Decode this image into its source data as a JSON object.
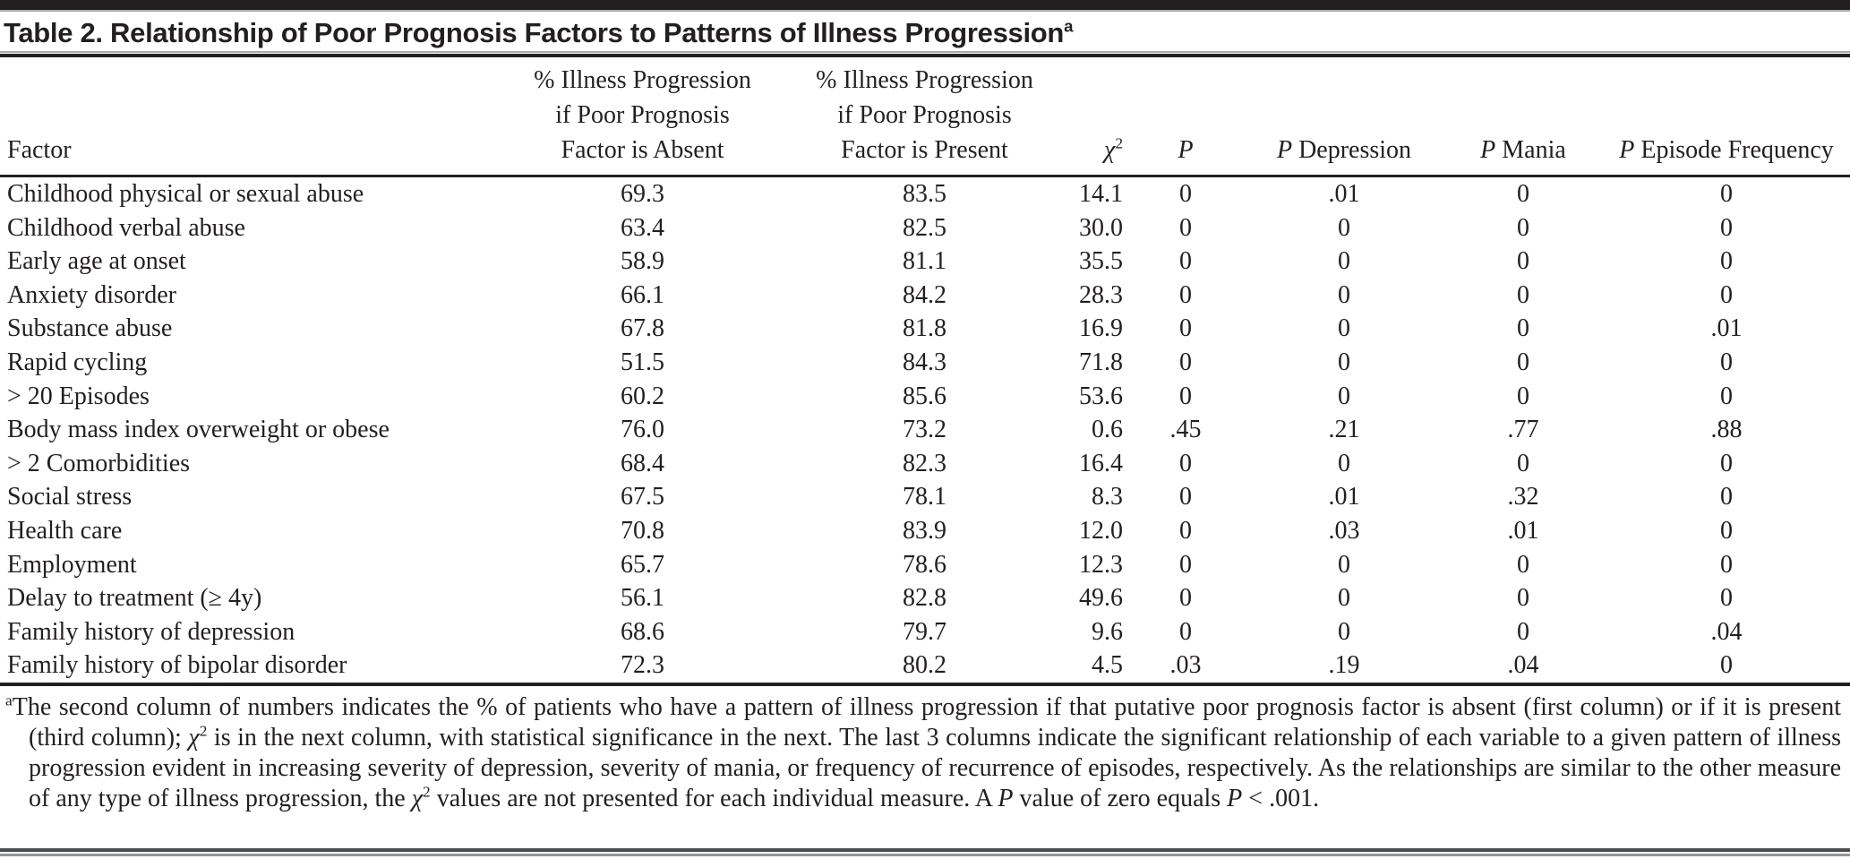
{
  "title": {
    "label": "Table 2. Relationship of Poor Prognosis Factors to Patterns of Illness Progression",
    "footnote_marker": "a"
  },
  "table": {
    "columns": [
      {
        "key": "factor",
        "align": "left",
        "parts": [
          {
            "text": "Factor"
          }
        ]
      },
      {
        "key": "pct_absent",
        "align": "center",
        "parts": [
          {
            "text": "% Illness Progression\nif Poor Prognosis\nFactor is Absent"
          }
        ]
      },
      {
        "key": "pct_present",
        "align": "center",
        "parts": [
          {
            "text": "% Illness Progression\nif Poor Prognosis\nFactor is Present"
          }
        ]
      },
      {
        "key": "chi_square",
        "align": "right",
        "parts": [
          {
            "text": "χ",
            "italic": true
          },
          {
            "text": "2",
            "sup": true
          }
        ]
      },
      {
        "key": "p",
        "align": "center",
        "parts": [
          {
            "text": "P",
            "italic": true
          }
        ]
      },
      {
        "key": "p_depression",
        "align": "center",
        "parts": [
          {
            "text": "P",
            "italic": true
          },
          {
            "text": " Depression"
          }
        ]
      },
      {
        "key": "p_mania",
        "align": "center",
        "parts": [
          {
            "text": "P",
            "italic": true
          },
          {
            "text": " Mania"
          }
        ]
      },
      {
        "key": "p_episode_frequency",
        "align": "center",
        "parts": [
          {
            "text": "P",
            "italic": true
          },
          {
            "text": " Episode Frequency"
          }
        ]
      }
    ],
    "rows": [
      [
        "Childhood physical or sexual abuse",
        "69.3",
        "83.5",
        "14.1",
        "0",
        ".01",
        "0",
        "0"
      ],
      [
        "Childhood verbal abuse",
        "63.4",
        "82.5",
        "30.0",
        "0",
        "0",
        "0",
        "0"
      ],
      [
        "Early age at onset",
        "58.9",
        "81.1",
        "35.5",
        "0",
        "0",
        "0",
        "0"
      ],
      [
        "Anxiety disorder",
        "66.1",
        "84.2",
        "28.3",
        "0",
        "0",
        "0",
        "0"
      ],
      [
        "Substance abuse",
        "67.8",
        "81.8",
        "16.9",
        "0",
        "0",
        "0",
        ".01"
      ],
      [
        "Rapid cycling",
        "51.5",
        "84.3",
        "71.8",
        "0",
        "0",
        "0",
        "0"
      ],
      [
        "> 20 Episodes",
        "60.2",
        "85.6",
        "53.6",
        "0",
        "0",
        "0",
        "0"
      ],
      [
        "Body mass index overweight or obese",
        "76.0",
        "73.2",
        "0.6",
        ".45",
        ".21",
        ".77",
        ".88"
      ],
      [
        "> 2 Comorbidities",
        "68.4",
        "82.3",
        "16.4",
        "0",
        "0",
        "0",
        "0"
      ],
      [
        "Social stress",
        "67.5",
        "78.1",
        "8.3",
        "0",
        ".01",
        ".32",
        "0"
      ],
      [
        "Health care",
        "70.8",
        "83.9",
        "12.0",
        "0",
        ".03",
        ".01",
        "0"
      ],
      [
        "Employment",
        "65.7",
        "78.6",
        "12.3",
        "0",
        "0",
        "0",
        "0"
      ],
      [
        "Delay to treatment (≥ 4y)",
        "56.1",
        "82.8",
        "49.6",
        "0",
        "0",
        "0",
        "0"
      ],
      [
        "Family history of depression",
        "68.6",
        "79.7",
        "9.6",
        "0",
        "0",
        "0",
        ".04"
      ],
      [
        "Family history of bipolar disorder",
        "72.3",
        "80.2",
        "4.5",
        ".03",
        ".19",
        ".04",
        "0"
      ]
    ]
  },
  "footnote": {
    "parts": [
      {
        "text": "a",
        "sup": true
      },
      {
        "text": "The second column of numbers indicates the % of patients who have a pattern of illness progression if that putative poor prognosis factor is absent (first column) or if it is present (third column); "
      },
      {
        "text": "χ",
        "italic": true
      },
      {
        "text": "2",
        "sup": true
      },
      {
        "text": " is in the next column, with statistical significance in the next. The last 3 columns indicate the significant relationship of each variable to a given pattern of illness progression evident in increasing severity of depression, severity of mania, or frequency of recurrence of episodes, respectively. As the relationships are similar to the other measure of any type of illness progression, the "
      },
      {
        "text": "χ",
        "italic": true
      },
      {
        "text": "2",
        "sup": true
      },
      {
        "text": " values are not presented for each individual measure. A "
      },
      {
        "text": "P",
        "italic": true
      },
      {
        "text": " value of zero equals "
      },
      {
        "text": "P",
        "italic": true
      },
      {
        "text": " < .001."
      }
    ]
  },
  "colors": {
    "text": "#231f20",
    "rule_dark": "#231f20",
    "rule_gray": "#a7a9ac",
    "background": "#ffffff"
  }
}
